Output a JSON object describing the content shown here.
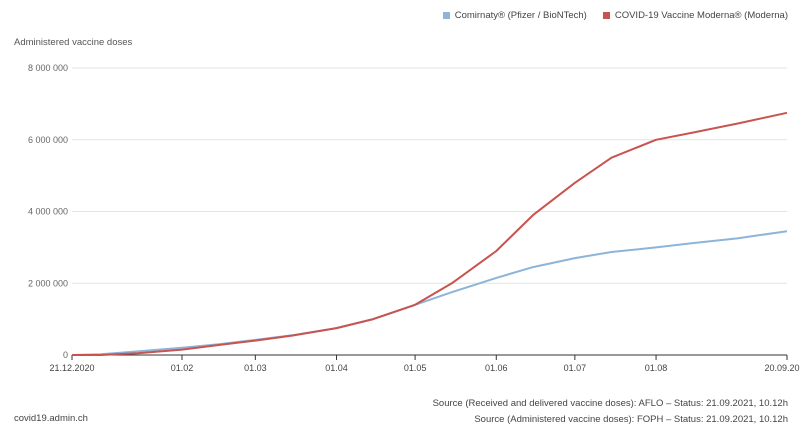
{
  "legend": [
    {
      "label": "Comirnaty® (Pfizer / BioNTech)",
      "color": "#8db4d9"
    },
    {
      "label": "COVID-19 Vaccine Moderna® (Moderna)",
      "color": "#c9534f"
    }
  ],
  "site": "covid19.admin.ch",
  "sources": [
    "Source (Received and delivered vaccine doses): AFLO – Status: 21.09.2021, 10.12h",
    "Source (Administered vaccine doses): FOPH – Status: 21.09.2021, 10.12h"
  ],
  "chart_data": {
    "type": "line",
    "ylabel": "Administered vaccine doses",
    "ylim": [
      0,
      8000000
    ],
    "yticks": [
      0,
      2000000,
      4000000,
      6000000,
      8000000
    ],
    "ytick_labels": [
      "0",
      "2 000 000",
      "4 000 000",
      "6 000 000",
      "8 000 000"
    ],
    "xlim": [
      "2020-12-21",
      "2021-09-20"
    ],
    "xticks": [
      "2020-12-21",
      "2021-02-01",
      "2021-03-01",
      "2021-04-01",
      "2021-05-01",
      "2021-06-01",
      "2021-07-01",
      "2021-08-01",
      "2021-09-20"
    ],
    "xtick_labels": [
      "21.12.2020",
      "01.02",
      "01.03",
      "01.04",
      "01.05",
      "01.06",
      "01.07",
      "01.08",
      "20.09.2021"
    ],
    "grid": true,
    "legend_position": "top-right",
    "series": [
      {
        "name": "Comirnaty® (Pfizer / BioNTech)",
        "color": "#8db4d9",
        "points": [
          [
            "2020-12-21",
            0
          ],
          [
            "2021-01-01",
            20000
          ],
          [
            "2021-01-15",
            100000
          ],
          [
            "2021-02-01",
            200000
          ],
          [
            "2021-02-15",
            300000
          ],
          [
            "2021-03-01",
            420000
          ],
          [
            "2021-03-15",
            550000
          ],
          [
            "2021-04-01",
            750000
          ],
          [
            "2021-04-15",
            1000000
          ],
          [
            "2021-05-01",
            1400000
          ],
          [
            "2021-05-15",
            1750000
          ],
          [
            "2021-06-01",
            2150000
          ],
          [
            "2021-06-15",
            2450000
          ],
          [
            "2021-07-01",
            2700000
          ],
          [
            "2021-07-15",
            2870000
          ],
          [
            "2021-08-01",
            3000000
          ],
          [
            "2021-08-15",
            3120000
          ],
          [
            "2021-09-01",
            3250000
          ],
          [
            "2021-09-20",
            3450000
          ]
        ]
      },
      {
        "name": "COVID-19 Vaccine Moderna® (Moderna)",
        "color": "#c9534f",
        "points": [
          [
            "2020-12-21",
            0
          ],
          [
            "2021-01-01",
            0
          ],
          [
            "2021-01-15",
            50000
          ],
          [
            "2021-02-01",
            150000
          ],
          [
            "2021-02-15",
            280000
          ],
          [
            "2021-03-01",
            400000
          ],
          [
            "2021-03-15",
            540000
          ],
          [
            "2021-04-01",
            750000
          ],
          [
            "2021-04-15",
            1000000
          ],
          [
            "2021-05-01",
            1400000
          ],
          [
            "2021-05-15",
            2000000
          ],
          [
            "2021-06-01",
            2900000
          ],
          [
            "2021-06-15",
            3900000
          ],
          [
            "2021-07-01",
            4800000
          ],
          [
            "2021-07-15",
            5500000
          ],
          [
            "2021-08-01",
            6000000
          ],
          [
            "2021-08-15",
            6200000
          ],
          [
            "2021-09-01",
            6450000
          ],
          [
            "2021-09-20",
            6750000
          ]
        ]
      }
    ]
  }
}
